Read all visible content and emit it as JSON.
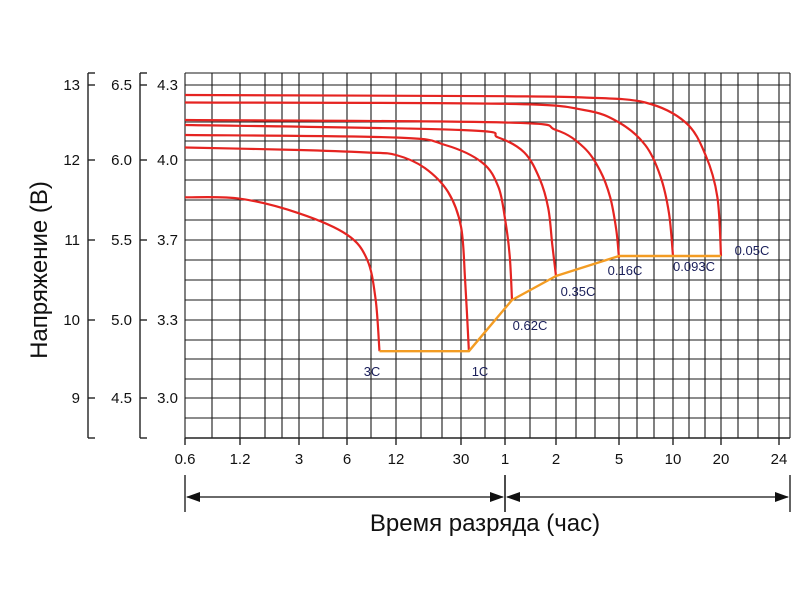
{
  "chart_data": {
    "type": "line",
    "xlabel": "Время разряда (час)",
    "ylabel": "Напряжение (В)",
    "x_ticks": [
      "0.6",
      "1.2",
      "3",
      "6",
      "12",
      "30",
      "1",
      "2",
      "5",
      "10",
      "20",
      "24"
    ],
    "y_axes": [
      {
        "ticks": [
          "13",
          "12",
          "11",
          "10",
          "9"
        ]
      },
      {
        "ticks": [
          "6.5",
          "6.0",
          "5.5",
          "5.0",
          "4.5"
        ]
      },
      {
        "ticks": [
          "4.3",
          "4.0",
          "3.7",
          "3.3",
          "3.0"
        ]
      }
    ],
    "ylim_cell": [
      2.96,
      4.3
    ],
    "grid": true,
    "series": [
      {
        "name": "3C",
        "points": [
          [
            0.6,
            3.86
          ],
          [
            1.2,
            3.855
          ],
          [
            3,
            3.8
          ],
          [
            6,
            3.72
          ],
          [
            8,
            3.6
          ],
          [
            9,
            3.4
          ],
          [
            9.5,
            3.18
          ]
        ]
      },
      {
        "name": "1C",
        "points": [
          [
            0.6,
            4.05
          ],
          [
            3,
            4.04
          ],
          [
            8,
            4.03
          ],
          [
            12,
            4.02
          ],
          [
            18,
            3.97
          ],
          [
            25,
            3.88
          ],
          [
            30,
            3.75
          ],
          [
            32,
            3.5
          ],
          [
            34,
            3.18
          ]
        ]
      },
      {
        "name": "0.62C",
        "points": [
          [
            0.6,
            4.1
          ],
          [
            12,
            4.09
          ],
          [
            24,
            4.06
          ],
          [
            42,
            3.99
          ],
          [
            54,
            3.9
          ],
          [
            60,
            3.78
          ],
          [
            64,
            3.62
          ],
          [
            66,
            3.4
          ]
        ]
      },
      {
        "name": "0.35C",
        "points": [
          [
            0.6,
            4.14
          ],
          [
            30,
            4.12
          ],
          [
            54,
            4.09
          ],
          [
            78,
            4.03
          ],
          [
            96,
            3.93
          ],
          [
            108,
            3.82
          ],
          [
            114,
            3.68
          ],
          [
            120,
            3.52
          ]
        ]
      },
      {
        "name": "0.16C",
        "points": [
          [
            0.6,
            4.16
          ],
          [
            60,
            4.15
          ],
          [
            120,
            4.12
          ],
          [
            180,
            4.05
          ],
          [
            228,
            3.96
          ],
          [
            264,
            3.86
          ],
          [
            288,
            3.74
          ],
          [
            300,
            3.61
          ]
        ]
      },
      {
        "name": "0.093C",
        "points": [
          [
            0.6,
            4.23
          ],
          [
            60,
            4.225
          ],
          [
            180,
            4.2
          ],
          [
            300,
            4.15
          ],
          [
            420,
            4.06
          ],
          [
            510,
            3.94
          ],
          [
            570,
            3.8
          ],
          [
            600,
            3.62
          ]
        ]
      },
      {
        "name": "0.05C",
        "points": [
          [
            0.6,
            4.26
          ],
          [
            60,
            4.255
          ],
          [
            180,
            4.25
          ],
          [
            420,
            4.23
          ],
          [
            720,
            4.15
          ],
          [
            960,
            4.02
          ],
          [
            1140,
            3.86
          ],
          [
            1200,
            3.62
          ]
        ]
      }
    ],
    "end_voltage_line": {
      "points": [
        [
          9.5,
          3.18
        ],
        [
          34,
          3.18
        ],
        [
          66,
          3.4
        ],
        [
          120,
          3.52
        ],
        [
          300,
          3.62
        ],
        [
          1200,
          3.62
        ]
      ]
    },
    "colors": {
      "curves": "#e52421",
      "end_voltage": "#f39c23",
      "grid": "#1a1a1a",
      "rate_labels": "#1a1f5a"
    }
  }
}
